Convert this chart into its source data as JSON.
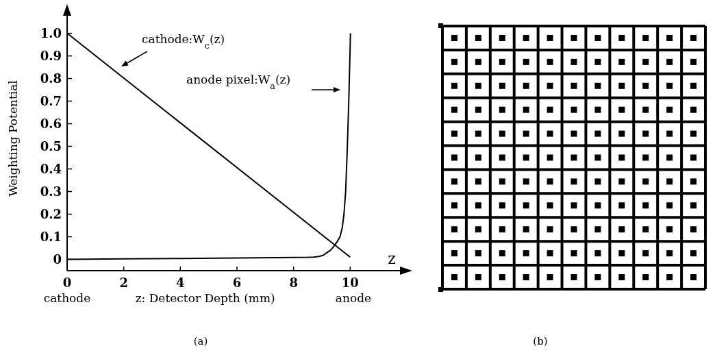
{
  "chart_data": {
    "type": "line",
    "xlabel": "z: Detector Depth (mm)",
    "ylabel": "Weighting Potential",
    "xlim": [
      0,
      12
    ],
    "ylim": [
      -0.05,
      1.12
    ],
    "xticks": [
      0,
      2,
      4,
      6,
      8,
      10
    ],
    "yticks": [
      0,
      0.1,
      0.2,
      0.3,
      0.4,
      0.5,
      0.6,
      0.7,
      0.8,
      0.9,
      {
        "value": 1,
        "label": "1.0"
      }
    ],
    "grid": false,
    "legend": false,
    "marker": "none",
    "line_style": "solid",
    "series": [
      {
        "color": "#000000",
        "x": [
          0,
          10
        ],
        "values": [
          1.0,
          0.01
        ]
      },
      {
        "color": "#000000",
        "x": [
          0,
          2,
          4,
          6,
          8,
          8.5,
          8.7,
          8.9,
          9.05,
          9.18,
          9.3,
          9.43,
          9.55,
          9.64,
          9.72,
          9.78,
          9.84,
          9.9,
          9.95,
          10.01
        ],
        "values": [
          0,
          0.002,
          0.004,
          0.006,
          0.008,
          0.009,
          0.01,
          0.013,
          0.018,
          0.03,
          0.04,
          0.059,
          0.08,
          0.1,
          0.14,
          0.2,
          0.3,
          0.5,
          0.7,
          1.0
        ]
      }
    ],
    "annotations": [
      "cathode:W$_{c}$(z)",
      "anode pixel:W$_{a}$(z)",
      "z",
      "cathode",
      "anode",
      "(a)",
      "(b)"
    ]
  }
}
